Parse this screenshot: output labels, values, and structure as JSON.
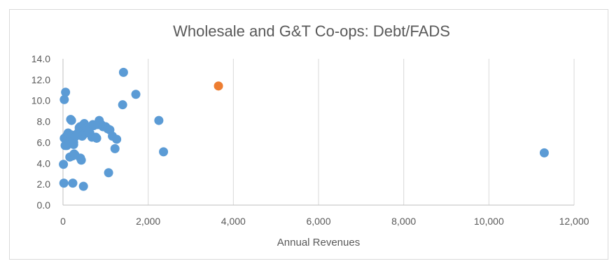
{
  "chart_data": {
    "type": "scatter",
    "title": "Wholesale and G&T Co-ops:  Debt/FADS",
    "xlabel": "Annual Revenues",
    "ylabel": "",
    "xlim": [
      0,
      12000
    ],
    "ylim": [
      0,
      14
    ],
    "x_ticks": [
      "0",
      "2,000",
      "4,000",
      "6,000",
      "8,000",
      "10,000",
      "12,000"
    ],
    "x_tick_values": [
      0,
      2000,
      4000,
      6000,
      8000,
      10000,
      12000
    ],
    "y_ticks": [
      "0.0",
      "2.0",
      "4.0",
      "6.0",
      "8.0",
      "10.0",
      "12.0",
      "14.0"
    ],
    "y_tick_values": [
      0,
      2,
      4,
      6,
      8,
      10,
      12,
      14
    ],
    "grid": "vertical",
    "legend": "none",
    "colors": {
      "series": "#5b9bd5",
      "highlight": "#ed7d31",
      "text": "#595959",
      "grid": "#d9d9d9",
      "axis": "#bfbfbf"
    },
    "series": [
      {
        "color": "#5b9bd5",
        "points": [
          [
            10,
            3.9
          ],
          [
            20,
            2.1
          ],
          [
            30,
            10.1
          ],
          [
            60,
            10.8
          ],
          [
            30,
            6.4
          ],
          [
            50,
            5.7
          ],
          [
            80,
            6.6
          ],
          [
            100,
            6.2
          ],
          [
            120,
            6.9
          ],
          [
            140,
            6.8
          ],
          [
            90,
            5.7
          ],
          [
            150,
            5.9
          ],
          [
            170,
            6.3
          ],
          [
            160,
            4.6
          ],
          [
            180,
            8.2
          ],
          [
            200,
            8.1
          ],
          [
            210,
            6.7
          ],
          [
            230,
            6.1
          ],
          [
            250,
            6.0
          ],
          [
            250,
            5.8
          ],
          [
            220,
            4.7
          ],
          [
            260,
            4.9
          ],
          [
            280,
            4.8
          ],
          [
            230,
            2.1
          ],
          [
            300,
            6.6
          ],
          [
            350,
            6.9
          ],
          [
            380,
            7.4
          ],
          [
            400,
            7.5
          ],
          [
            410,
            4.5
          ],
          [
            430,
            4.3
          ],
          [
            450,
            6.6
          ],
          [
            470,
            6.7
          ],
          [
            480,
            7.7
          ],
          [
            500,
            7.8
          ],
          [
            520,
            7.6
          ],
          [
            480,
            1.8
          ],
          [
            530,
            6.9
          ],
          [
            560,
            7.4
          ],
          [
            600,
            7.2
          ],
          [
            630,
            6.9
          ],
          [
            680,
            6.5
          ],
          [
            700,
            7.7
          ],
          [
            720,
            7.6
          ],
          [
            770,
            6.5
          ],
          [
            790,
            6.4
          ],
          [
            820,
            7.7
          ],
          [
            850,
            8.1
          ],
          [
            900,
            7.7
          ],
          [
            940,
            7.5
          ],
          [
            1000,
            7.5
          ],
          [
            1050,
            7.3
          ],
          [
            1070,
            3.1
          ],
          [
            1100,
            7.2
          ],
          [
            1160,
            6.6
          ],
          [
            1220,
            5.4
          ],
          [
            1260,
            6.3
          ],
          [
            1400,
            9.6
          ],
          [
            1420,
            12.7
          ],
          [
            1710,
            10.6
          ],
          [
            2250,
            8.1
          ],
          [
            2360,
            5.1
          ],
          [
            11300,
            5.0
          ]
        ]
      },
      {
        "color": "#ed7d31",
        "points": [
          [
            3650,
            11.4
          ]
        ]
      }
    ]
  }
}
